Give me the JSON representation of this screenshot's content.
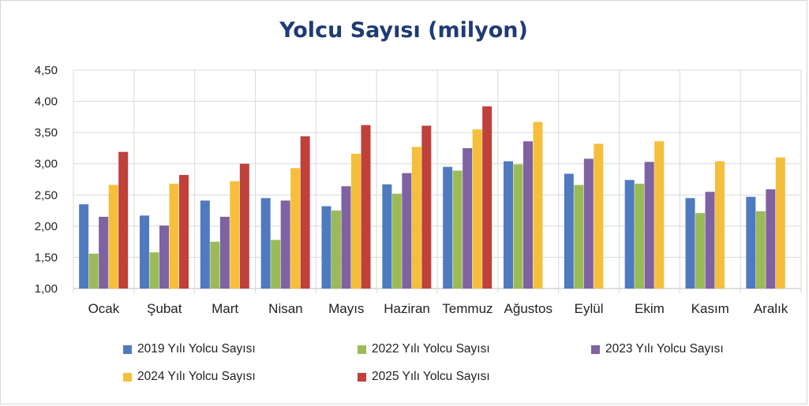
{
  "chart_data": {
    "type": "bar",
    "title": "Yolcu Sayısı (milyon)",
    "xlabel": "",
    "ylabel": "",
    "ylim": [
      1.0,
      4.5
    ],
    "yticks": [
      "1,00",
      "1,50",
      "2,00",
      "2,50",
      "3,00",
      "3,50",
      "4,00",
      "4,50"
    ],
    "ytick_values": [
      1.0,
      1.5,
      2.0,
      2.5,
      3.0,
      3.5,
      4.0,
      4.5
    ],
    "grid": true,
    "legend_position": "bottom",
    "categories": [
      "Ocak",
      "Şubat",
      "Mart",
      "Nisan",
      "Mayıs",
      "Haziran",
      "Temmuz",
      "Ağustos",
      "Eylül",
      "Ekim",
      "Kasım",
      "Aralık"
    ],
    "series": [
      {
        "name": "2019 Yılı Yolcu Sayısı",
        "color": "#4f7ac0",
        "values": [
          2.35,
          2.17,
          2.41,
          2.45,
          2.32,
          2.67,
          2.95,
          3.04,
          2.84,
          2.74,
          2.45,
          2.47
        ]
      },
      {
        "name": "2022 Yılı Yolcu Sayısı",
        "color": "#9bbb59",
        "values": [
          1.56,
          1.58,
          1.75,
          1.78,
          2.25,
          2.52,
          2.89,
          2.99,
          2.66,
          2.68,
          2.21,
          2.24
        ]
      },
      {
        "name": "2023 Yılı Yolcu Sayısı",
        "color": "#7e62a1",
        "values": [
          2.15,
          2.01,
          2.15,
          2.41,
          2.64,
          2.85,
          3.25,
          3.36,
          3.08,
          3.03,
          2.55,
          2.59
        ]
      },
      {
        "name": "2024 Yılı Yolcu Sayısı",
        "color": "#f5bf3b",
        "values": [
          2.66,
          2.68,
          2.72,
          2.93,
          3.16,
          3.27,
          3.55,
          3.67,
          3.32,
          3.36,
          3.04,
          3.1
        ]
      },
      {
        "name": "2025 Yılı Yolcu Sayısı",
        "color": "#c0403a",
        "values": [
          3.19,
          2.82,
          3.0,
          3.44,
          3.62,
          3.61,
          3.92,
          null,
          null,
          null,
          null,
          null
        ]
      }
    ]
  }
}
